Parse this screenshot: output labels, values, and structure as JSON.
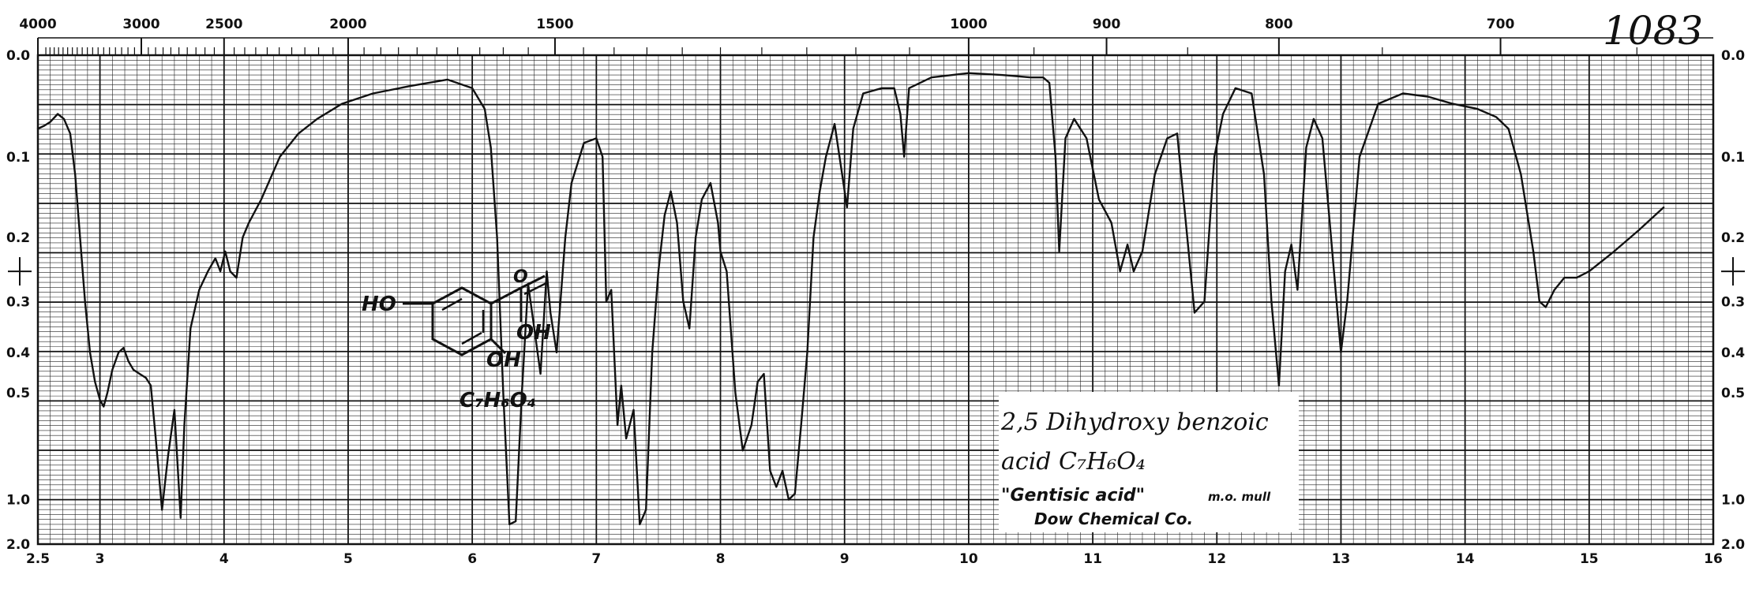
{
  "page": {
    "corner_number": "1083"
  },
  "label_box": {
    "line1": "2,5 Dihydroxy benzoic",
    "line2": "acid  C₇H₆O₄",
    "line3": "\"Gentisic acid\"",
    "line3_note": "m.o. mull",
    "line4": "Dow Chemical Co."
  },
  "structure": {
    "ho_label": "HO",
    "oh_label": "OH",
    "oh_ring_label": "OH",
    "formula": "C₇H₆O₄",
    "o_label": "O"
  },
  "colors": {
    "ink": "#111111",
    "paper": "#ffffff"
  },
  "chart_data": {
    "type": "line",
    "title": "",
    "xlabel": "",
    "ylabel": "",
    "x_axis_bottom": {
      "unit": "microns",
      "range": [
        2.5,
        16
      ],
      "ticks": [
        {
          "value": 2.5,
          "label": "2.5"
        },
        {
          "value": 3,
          "label": "3"
        },
        {
          "value": 4,
          "label": "4"
        },
        {
          "value": 5,
          "label": "5"
        },
        {
          "value": 6,
          "label": "6"
        },
        {
          "value": 7,
          "label": "7"
        },
        {
          "value": 8,
          "label": "8"
        },
        {
          "value": 9,
          "label": "9"
        },
        {
          "value": 10,
          "label": "10"
        },
        {
          "value": 11,
          "label": "11"
        },
        {
          "value": 12,
          "label": "12"
        },
        {
          "value": 13,
          "label": "13"
        },
        {
          "value": 14,
          "label": "14"
        },
        {
          "value": 15,
          "label": "15"
        },
        {
          "value": 16,
          "label": "16"
        }
      ]
    },
    "x_axis_top": {
      "unit": "cm-1",
      "ticks": [
        {
          "value": 4000,
          "label": "4000"
        },
        {
          "value": 3000,
          "label": "3000"
        },
        {
          "value": 2500,
          "label": "2500"
        },
        {
          "value": 2000,
          "label": "2000"
        },
        {
          "value": 1500,
          "label": "1500"
        },
        {
          "value": 1000,
          "label": "1000"
        },
        {
          "value": 900,
          "label": "900"
        },
        {
          "value": 800,
          "label": "800"
        },
        {
          "value": 700,
          "label": "700"
        }
      ]
    },
    "y_axis": {
      "quantity": "absorbance",
      "scale": "transmittance-linear",
      "ticks": [
        {
          "value": 0.0,
          "label": "0.0"
        },
        {
          "value": 0.1,
          "label": "0.1"
        },
        {
          "value": 0.2,
          "label": "0.2"
        },
        {
          "value": 0.3,
          "label": "0.3"
        },
        {
          "value": 0.4,
          "label": "0.4"
        },
        {
          "value": 0.5,
          "label": "0.5"
        },
        {
          "value": 1.0,
          "label": "1.0"
        },
        {
          "value": 2.0,
          "label": "2.0"
        }
      ]
    },
    "grid": true,
    "series": [
      {
        "points": [
          [
            2.5,
            0.07
          ],
          [
            2.55,
            0.067
          ],
          [
            2.6,
            0.063
          ],
          [
            2.66,
            0.055
          ],
          [
            2.71,
            0.06
          ],
          [
            2.76,
            0.075
          ],
          [
            2.8,
            0.12
          ],
          [
            2.84,
            0.2
          ],
          [
            2.88,
            0.3
          ],
          [
            2.92,
            0.4
          ],
          [
            2.96,
            0.47
          ],
          [
            3.0,
            0.52
          ],
          [
            3.03,
            0.54
          ],
          [
            3.06,
            0.5
          ],
          [
            3.1,
            0.44
          ],
          [
            3.15,
            0.4
          ],
          [
            3.19,
            0.39
          ],
          [
            3.23,
            0.42
          ],
          [
            3.27,
            0.44
          ],
          [
            3.32,
            0.45
          ],
          [
            3.37,
            0.46
          ],
          [
            3.41,
            0.48
          ],
          [
            3.45,
            0.65
          ],
          [
            3.5,
            1.1
          ],
          [
            3.55,
            0.72
          ],
          [
            3.6,
            0.55
          ],
          [
            3.65,
            1.2
          ],
          [
            3.68,
            0.6
          ],
          [
            3.73,
            0.35
          ],
          [
            3.8,
            0.28
          ],
          [
            3.87,
            0.25
          ],
          [
            3.93,
            0.23
          ],
          [
            3.97,
            0.25
          ],
          [
            4.01,
            0.22
          ],
          [
            4.05,
            0.25
          ],
          [
            4.1,
            0.26
          ],
          [
            4.15,
            0.2
          ],
          [
            4.2,
            0.18
          ],
          [
            4.3,
            0.15
          ],
          [
            4.45,
            0.1
          ],
          [
            4.6,
            0.075
          ],
          [
            4.75,
            0.06
          ],
          [
            4.95,
            0.045
          ],
          [
            5.2,
            0.035
          ],
          [
            5.5,
            0.028
          ],
          [
            5.8,
            0.022
          ],
          [
            6.0,
            0.03
          ],
          [
            6.1,
            0.05
          ],
          [
            6.15,
            0.09
          ],
          [
            6.2,
            0.2
          ],
          [
            6.25,
            0.5
          ],
          [
            6.3,
            1.3
          ],
          [
            6.35,
            1.25
          ],
          [
            6.4,
            0.5
          ],
          [
            6.45,
            0.27
          ],
          [
            6.5,
            0.35
          ],
          [
            6.55,
            0.45
          ],
          [
            6.6,
            0.25
          ],
          [
            6.63,
            0.32
          ],
          [
            6.68,
            0.4
          ],
          [
            6.75,
            0.2
          ],
          [
            6.8,
            0.13
          ],
          [
            6.9,
            0.085
          ],
          [
            7.0,
            0.08
          ],
          [
            7.05,
            0.1
          ],
          [
            7.08,
            0.3
          ],
          [
            7.12,
            0.28
          ],
          [
            7.17,
            0.6
          ],
          [
            7.2,
            0.48
          ],
          [
            7.24,
            0.65
          ],
          [
            7.3,
            0.55
          ],
          [
            7.35,
            1.3
          ],
          [
            7.4,
            1.1
          ],
          [
            7.45,
            0.4
          ],
          [
            7.5,
            0.25
          ],
          [
            7.55,
            0.17
          ],
          [
            7.6,
            0.14
          ],
          [
            7.65,
            0.18
          ],
          [
            7.7,
            0.3
          ],
          [
            7.75,
            0.35
          ],
          [
            7.8,
            0.2
          ],
          [
            7.85,
            0.15
          ],
          [
            7.92,
            0.13
          ],
          [
            7.98,
            0.18
          ],
          [
            8.0,
            0.22
          ],
          [
            8.05,
            0.25
          ],
          [
            8.12,
            0.5
          ],
          [
            8.18,
            0.7
          ],
          [
            8.25,
            0.6
          ],
          [
            8.3,
            0.47
          ],
          [
            8.35,
            0.45
          ],
          [
            8.4,
            0.8
          ],
          [
            8.45,
            0.9
          ],
          [
            8.5,
            0.8
          ],
          [
            8.55,
            1.0
          ],
          [
            8.6,
            0.95
          ],
          [
            8.65,
            0.6
          ],
          [
            8.7,
            0.4
          ],
          [
            8.75,
            0.2
          ],
          [
            8.8,
            0.14
          ],
          [
            8.85,
            0.1
          ],
          [
            8.92,
            0.065
          ],
          [
            8.97,
            0.11
          ],
          [
            9.02,
            0.16
          ],
          [
            9.07,
            0.07
          ],
          [
            9.15,
            0.035
          ],
          [
            9.3,
            0.03
          ],
          [
            9.4,
            0.03
          ],
          [
            9.45,
            0.055
          ],
          [
            9.48,
            0.1
          ],
          [
            9.52,
            0.03
          ],
          [
            9.7,
            0.02
          ],
          [
            10.0,
            0.016
          ],
          [
            10.3,
            0.018
          ],
          [
            10.5,
            0.02
          ],
          [
            10.6,
            0.02
          ],
          [
            10.65,
            0.025
          ],
          [
            10.7,
            0.1
          ],
          [
            10.73,
            0.22
          ],
          [
            10.78,
            0.08
          ],
          [
            10.85,
            0.06
          ],
          [
            10.95,
            0.08
          ],
          [
            11.05,
            0.15
          ],
          [
            11.15,
            0.18
          ],
          [
            11.22,
            0.25
          ],
          [
            11.28,
            0.21
          ],
          [
            11.33,
            0.25
          ],
          [
            11.4,
            0.22
          ],
          [
            11.5,
            0.12
          ],
          [
            11.6,
            0.08
          ],
          [
            11.68,
            0.075
          ],
          [
            11.75,
            0.18
          ],
          [
            11.82,
            0.32
          ],
          [
            11.9,
            0.3
          ],
          [
            11.98,
            0.1
          ],
          [
            12.05,
            0.055
          ],
          [
            12.15,
            0.03
          ],
          [
            12.28,
            0.035
          ],
          [
            12.38,
            0.12
          ],
          [
            12.44,
            0.3
          ],
          [
            12.5,
            0.48
          ],
          [
            12.55,
            0.25
          ],
          [
            12.6,
            0.21
          ],
          [
            12.65,
            0.28
          ],
          [
            12.72,
            0.09
          ],
          [
            12.78,
            0.06
          ],
          [
            12.85,
            0.08
          ],
          [
            12.92,
            0.2
          ],
          [
            13.0,
            0.4
          ],
          [
            13.05,
            0.3
          ],
          [
            13.15,
            0.1
          ],
          [
            13.3,
            0.045
          ],
          [
            13.5,
            0.035
          ],
          [
            13.7,
            0.038
          ],
          [
            13.9,
            0.045
          ],
          [
            14.1,
            0.05
          ],
          [
            14.25,
            0.058
          ],
          [
            14.35,
            0.07
          ],
          [
            14.45,
            0.12
          ],
          [
            14.55,
            0.22
          ],
          [
            14.6,
            0.3
          ],
          [
            14.65,
            0.31
          ],
          [
            14.72,
            0.28
          ],
          [
            14.8,
            0.26
          ],
          [
            14.9,
            0.26
          ],
          [
            15.0,
            0.25
          ],
          [
            15.2,
            0.22
          ],
          [
            15.4,
            0.19
          ],
          [
            15.6,
            0.16
          ]
        ]
      }
    ]
  }
}
